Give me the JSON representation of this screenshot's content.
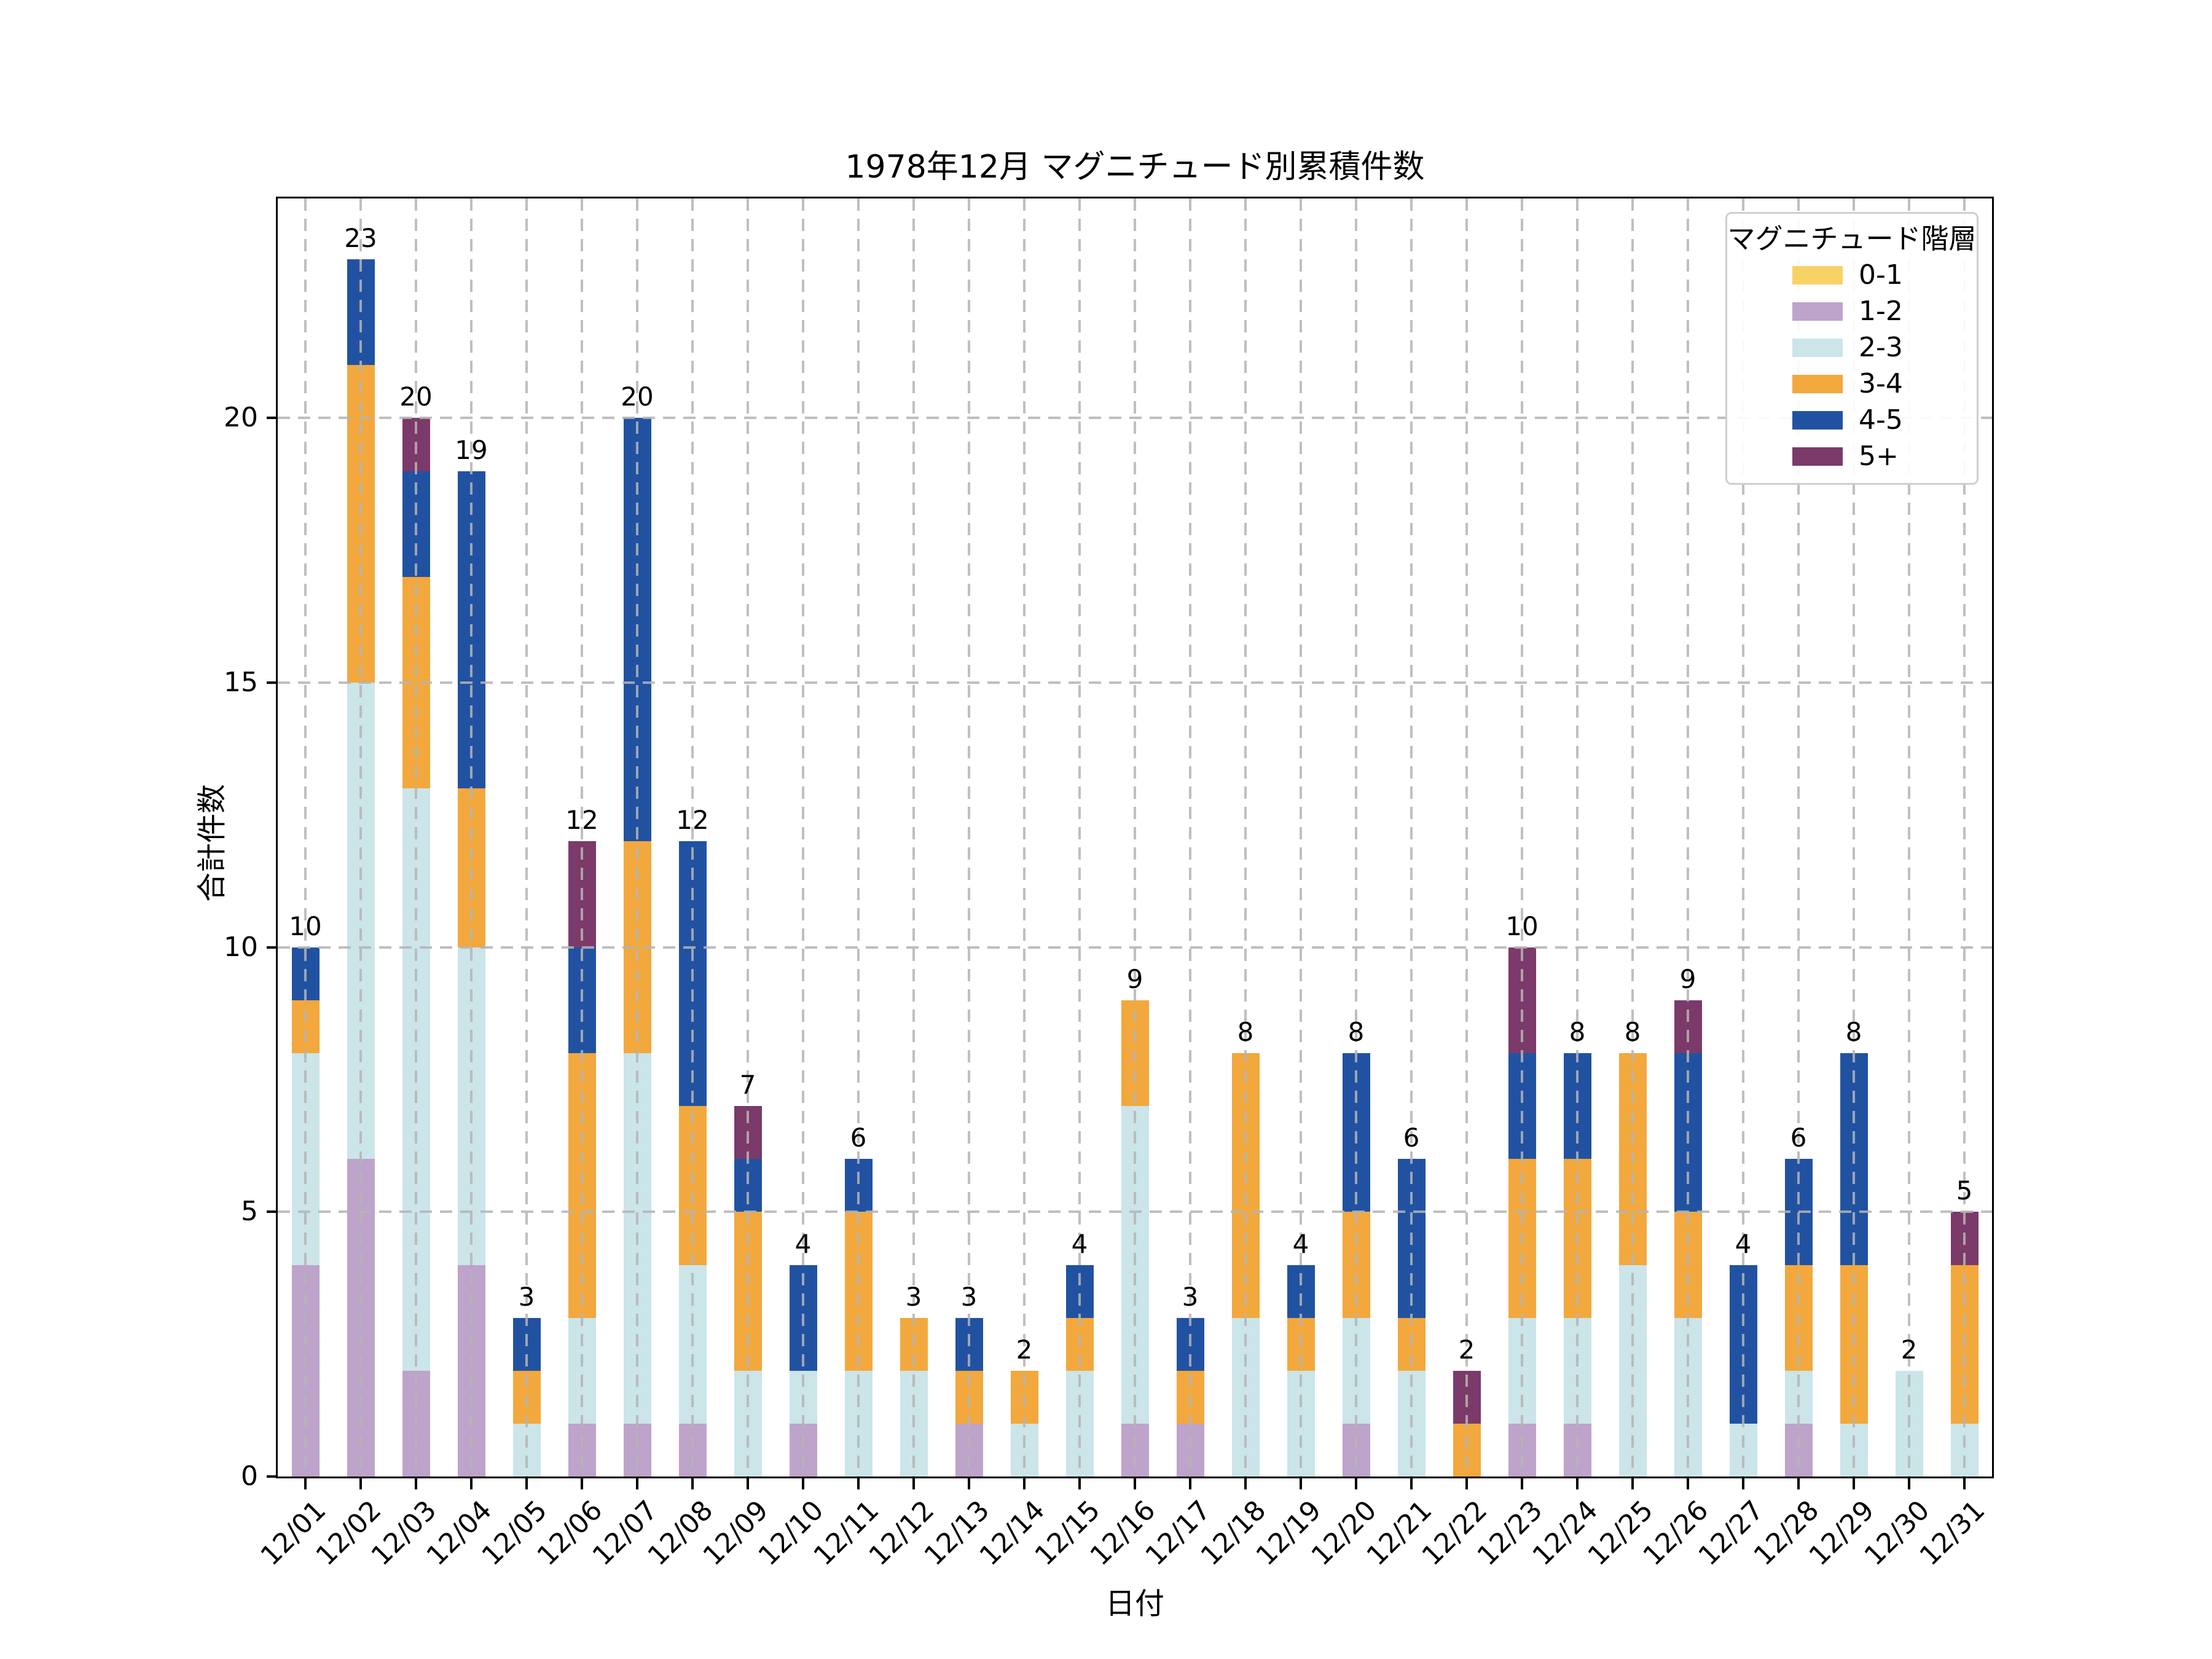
{
  "chart_data": {
    "type": "bar",
    "stacked": true,
    "title": "1978年12月 マグニチュード別累積件数",
    "xlabel": "日付",
    "ylabel": "合計件数",
    "ylim": [
      0,
      24.15
    ],
    "yticks": [
      0,
      5,
      10,
      15,
      20
    ],
    "grid": "dashed-both-axes",
    "legend_title": "マグニチュード階層",
    "legend_position": "upper right",
    "categories": [
      "12/01",
      "12/02",
      "12/03",
      "12/04",
      "12/05",
      "12/06",
      "12/07",
      "12/08",
      "12/09",
      "12/10",
      "12/11",
      "12/12",
      "12/13",
      "12/14",
      "12/15",
      "12/16",
      "12/17",
      "12/18",
      "12/19",
      "12/20",
      "12/21",
      "12/22",
      "12/23",
      "12/24",
      "12/25",
      "12/26",
      "12/27",
      "12/28",
      "12/29",
      "12/30",
      "12/31"
    ],
    "series": [
      {
        "name": "0-1",
        "color": "#F8D264",
        "values": [
          0,
          0,
          0,
          0,
          0,
          0,
          0,
          0,
          0,
          0,
          0,
          0,
          0,
          0,
          0,
          0,
          0,
          0,
          0,
          0,
          0,
          0,
          0,
          0,
          0,
          0,
          0,
          0,
          0,
          0,
          0
        ]
      },
      {
        "name": "1-2",
        "color": "#BEA3CA",
        "values": [
          4,
          6,
          2,
          4,
          0,
          1,
          1,
          1,
          0,
          1,
          0,
          0,
          1,
          0,
          0,
          1,
          1,
          0,
          0,
          1,
          0,
          0,
          1,
          1,
          0,
          0,
          0,
          1,
          0,
          0,
          0
        ]
      },
      {
        "name": "2-3",
        "color": "#CBE5E9",
        "values": [
          4,
          9,
          11,
          6,
          1,
          2,
          7,
          3,
          2,
          1,
          2,
          2,
          0,
          1,
          2,
          6,
          0,
          3,
          2,
          2,
          2,
          0,
          2,
          2,
          4,
          3,
          1,
          1,
          1,
          2,
          1
        ]
      },
      {
        "name": "3-4",
        "color": "#F2A83C",
        "values": [
          1,
          6,
          4,
          3,
          1,
          5,
          4,
          3,
          3,
          0,
          3,
          1,
          1,
          1,
          1,
          2,
          1,
          5,
          1,
          2,
          1,
          1,
          3,
          3,
          4,
          2,
          0,
          2,
          3,
          0,
          3
        ]
      },
      {
        "name": "4-5",
        "color": "#2152A2",
        "values": [
          1,
          2,
          2,
          6,
          1,
          2,
          8,
          5,
          1,
          2,
          1,
          0,
          1,
          0,
          1,
          0,
          1,
          0,
          1,
          3,
          3,
          0,
          2,
          2,
          0,
          3,
          3,
          2,
          4,
          0,
          0
        ]
      },
      {
        "name": "5+",
        "color": "#7B3A6A",
        "values": [
          0,
          0,
          1,
          0,
          0,
          2,
          0,
          0,
          1,
          0,
          0,
          0,
          0,
          0,
          0,
          0,
          0,
          0,
          0,
          0,
          0,
          1,
          2,
          0,
          0,
          1,
          0,
          0,
          0,
          0,
          1
        ]
      }
    ],
    "totals": [
      10,
      23,
      20,
      19,
      3,
      12,
      20,
      12,
      7,
      4,
      6,
      3,
      3,
      2,
      4,
      9,
      3,
      8,
      4,
      8,
      6,
      2,
      10,
      8,
      8,
      9,
      4,
      6,
      8,
      2,
      5
    ],
    "colors": {
      "grid": "#b4b4b4",
      "text": "#000000",
      "legend_border": "#cfcfcf",
      "background": "#ffffff"
    }
  }
}
